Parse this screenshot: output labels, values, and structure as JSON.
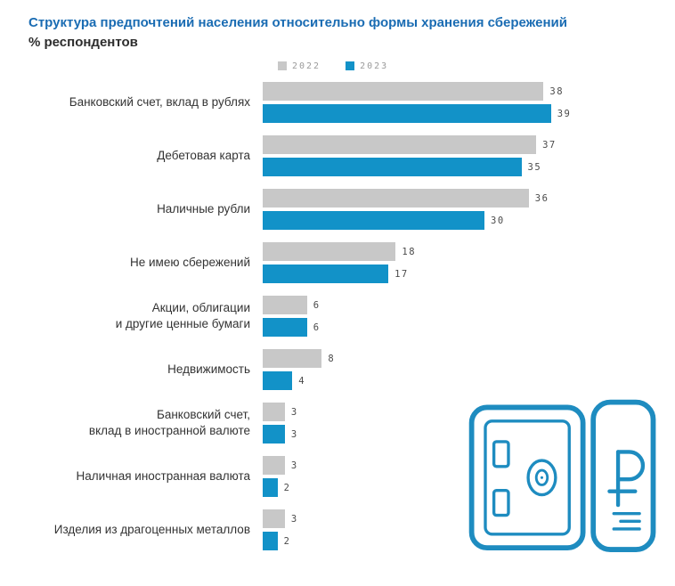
{
  "title": "Структура предпочтений населения относительно формы хранения сбережений",
  "subtitle": "% респондентов",
  "legend": [
    {
      "label": "2022",
      "color": "#c8c8c8"
    },
    {
      "label": "2023",
      "color": "#1292c8"
    }
  ],
  "chart_data": {
    "type": "bar",
    "orientation": "horizontal",
    "title": "Структура предпочтений населения относительно формы хранения сбережений",
    "xlabel": "% респондентов",
    "ylabel": "",
    "xlim": [
      0,
      40
    ],
    "grid": false,
    "legend_position": "top",
    "value_labels": true,
    "categories": [
      "Банковский счет, вклад в рублях",
      "Дебетовая карта",
      "Наличные рубли",
      "Не имею сбережений",
      "Акции, облигации\nи другие ценные бумаги",
      "Недвижимость",
      "Банковский счет,\nвклад в иностранной валюте",
      "Наличная иностранная валюта",
      "Изделия из драгоценных металлов"
    ],
    "series": [
      {
        "name": "2022",
        "color": "#c8c8c8",
        "values": [
          38,
          37,
          36,
          18,
          6,
          8,
          3,
          3,
          3
        ]
      },
      {
        "name": "2023",
        "color": "#1292c8",
        "values": [
          39,
          35,
          30,
          17,
          6,
          4,
          3,
          2,
          2
        ]
      }
    ]
  },
  "icon": {
    "name": "safe-with-ruble",
    "symbol": "₽",
    "color": "#1e8cc0"
  }
}
